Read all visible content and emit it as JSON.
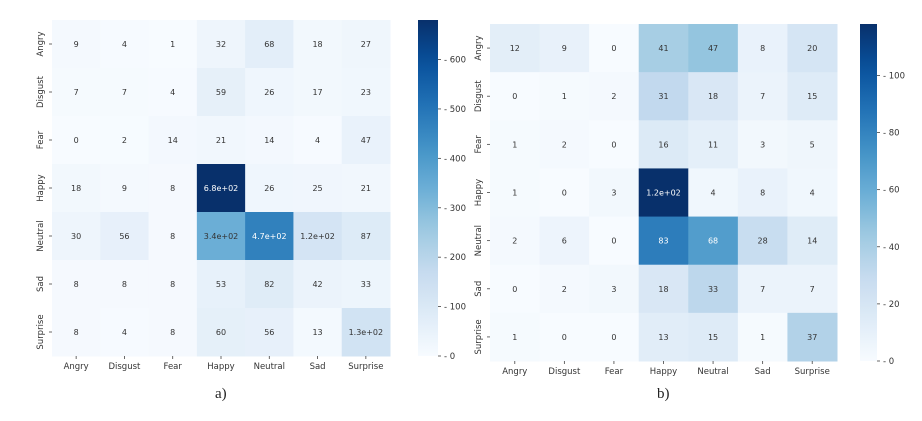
{
  "chart_data": [
    {
      "type": "heatmap",
      "caption": "a)",
      "x_categories": [
        "Angry",
        "Disgust",
        "Fear",
        "Happy",
        "Neutral",
        "Sad",
        "Surprise"
      ],
      "y_categories": [
        "Angry",
        "Disgust",
        "Fear",
        "Happy",
        "Neutral",
        "Sad",
        "Surprise"
      ],
      "values": [
        [
          9,
          4,
          1,
          32,
          68,
          18,
          27
        ],
        [
          7,
          7,
          4,
          59,
          26,
          17,
          23
        ],
        [
          0,
          2,
          14,
          21,
          14,
          4,
          47
        ],
        [
          18,
          9,
          8,
          680,
          26,
          25,
          21
        ],
        [
          30,
          56,
          8,
          340,
          470,
          120,
          87
        ],
        [
          8,
          8,
          8,
          53,
          82,
          42,
          33
        ],
        [
          8,
          4,
          8,
          60,
          56,
          13,
          130
        ]
      ],
      "labels": [
        [
          "9",
          "4",
          "1",
          "32",
          "68",
          "18",
          "27"
        ],
        [
          "7",
          "7",
          "4",
          "59",
          "26",
          "17",
          "23"
        ],
        [
          "0",
          "2",
          "14",
          "21",
          "14",
          "4",
          "47"
        ],
        [
          "18",
          "9",
          "8",
          "6.8e+02",
          "26",
          "25",
          "21"
        ],
        [
          "30",
          "56",
          "8",
          "3.4e+02",
          "4.7e+02",
          "1.2e+02",
          "87"
        ],
        [
          "8",
          "8",
          "8",
          "53",
          "82",
          "42",
          "33"
        ],
        [
          "8",
          "4",
          "8",
          "60",
          "56",
          "13",
          "1.3e+02"
        ]
      ],
      "colorbar": {
        "min": 0,
        "max": 680,
        "ticks": [
          0,
          100,
          200,
          300,
          400,
          500,
          600
        ]
      },
      "colormap": "Blues"
    },
    {
      "type": "heatmap",
      "caption": "b)",
      "x_categories": [
        "Angry",
        "Disgust",
        "Fear",
        "Happy",
        "Neutral",
        "Sad",
        "Surprise"
      ],
      "y_categories": [
        "Angry",
        "Disgust",
        "Fear",
        "Happy",
        "Neutral",
        "Sad",
        "Surprise"
      ],
      "values": [
        [
          12,
          9,
          0,
          41,
          47,
          8,
          20
        ],
        [
          0,
          1,
          2,
          31,
          18,
          7,
          15
        ],
        [
          1,
          2,
          0,
          16,
          11,
          3,
          5
        ],
        [
          1,
          0,
          3,
          120,
          4,
          8,
          4
        ],
        [
          2,
          6,
          0,
          83,
          68,
          28,
          14
        ],
        [
          0,
          2,
          3,
          18,
          33,
          7,
          7
        ],
        [
          1,
          0,
          0,
          13,
          15,
          1,
          37
        ]
      ],
      "labels": [
        [
          "12",
          "9",
          "0",
          "41",
          "47",
          "8",
          "20"
        ],
        [
          "0",
          "1",
          "2",
          "31",
          "18",
          "7",
          "15"
        ],
        [
          "1",
          "2",
          "0",
          "16",
          "11",
          "3",
          "5"
        ],
        [
          "1",
          "0",
          "3",
          "1.2e+02",
          "4",
          "8",
          "4"
        ],
        [
          "2",
          "6",
          "0",
          "83",
          "68",
          "28",
          "14"
        ],
        [
          "0",
          "2",
          "3",
          "18",
          "33",
          "7",
          "7"
        ],
        [
          "1",
          "0",
          "0",
          "13",
          "15",
          "1",
          "37"
        ]
      ],
      "colorbar": {
        "min": 0,
        "max": 118,
        "ticks": [
          0,
          20,
          40,
          60,
          80,
          100
        ]
      },
      "colormap": "Blues"
    }
  ]
}
